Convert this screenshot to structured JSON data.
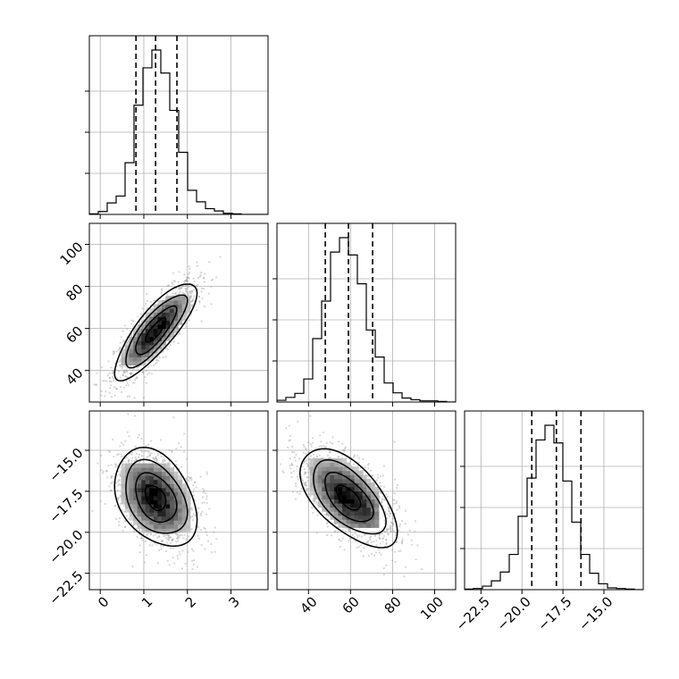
{
  "chart_data": {
    "type": "corner",
    "parameters": [
      {
        "id": "p0",
        "range": [
          -0.25,
          3.85
        ],
        "ticks": [
          0,
          1,
          2,
          3
        ],
        "tick_labels": [
          "0",
          "1",
          "2",
          "3"
        ],
        "quantiles": [
          0.82,
          1.27,
          1.76
        ]
      },
      {
        "id": "p1",
        "range": [
          25,
          110
        ],
        "ticks": [
          40,
          60,
          80,
          100
        ],
        "tick_labels": [
          "40",
          "60",
          "80",
          "100"
        ],
        "quantiles": [
          48,
          59,
          70.5
        ]
      },
      {
        "id": "p2",
        "range": [
          -23.5,
          -12.6
        ],
        "ticks": [
          -22.5,
          -20.0,
          -17.5,
          -15.0
        ],
        "tick_labels": [
          "−22.5",
          "−20.0",
          "−17.5",
          "−15.0"
        ],
        "quantiles": [
          -19.4,
          -17.9,
          -16.4
        ]
      }
    ],
    "histograms": [
      {
        "param": "p0",
        "edges_start": -0.25,
        "bin_width": 0.205,
        "counts": [
          1,
          5,
          20,
          32,
          90,
          190,
          255,
          286,
          246,
          181,
          108,
          42,
          22,
          10,
          6,
          2,
          1,
          0,
          0,
          0
        ]
      },
      {
        "param": "p1",
        "edges_start": 25,
        "bin_width": 4.25,
        "counts": [
          3,
          8,
          15,
          40,
          110,
          175,
          260,
          285,
          255,
          205,
          125,
          78,
          33,
          16,
          7,
          4,
          2,
          2,
          1,
          0
        ]
      },
      {
        "param": "p2",
        "edges_start": -23.5,
        "bin_width": 0.545,
        "counts": [
          1,
          2,
          6,
          15,
          30,
          60,
          125,
          190,
          255,
          280,
          250,
          185,
          115,
          60,
          28,
          10,
          3,
          2,
          1,
          0
        ]
      }
    ],
    "pairs": [
      {
        "x": "p0",
        "y": "p1",
        "center": [
          1.27,
          59
        ],
        "sigma": [
          0.47,
          11.5
        ],
        "rho": 0.82,
        "hist2d_peak": [
          1.27,
          59
        ]
      },
      {
        "x": "p0",
        "y": "p2",
        "center": [
          1.27,
          -17.9
        ],
        "sigma": [
          0.47,
          1.5
        ],
        "rho": -0.35,
        "hist2d_peak": [
          1.27,
          -17.9
        ]
      },
      {
        "x": "p1",
        "y": "p2",
        "center": [
          59,
          -17.9
        ],
        "sigma": [
          11.5,
          1.5
        ],
        "rho": -0.6,
        "hist2d_peak": [
          57,
          -17.6
        ]
      }
    ],
    "contour_levels": [
      "0.5 sigma",
      "1 sigma",
      "1.5 sigma",
      "2 sigma"
    ],
    "grid": true,
    "quantile_line_style": "dashed"
  }
}
